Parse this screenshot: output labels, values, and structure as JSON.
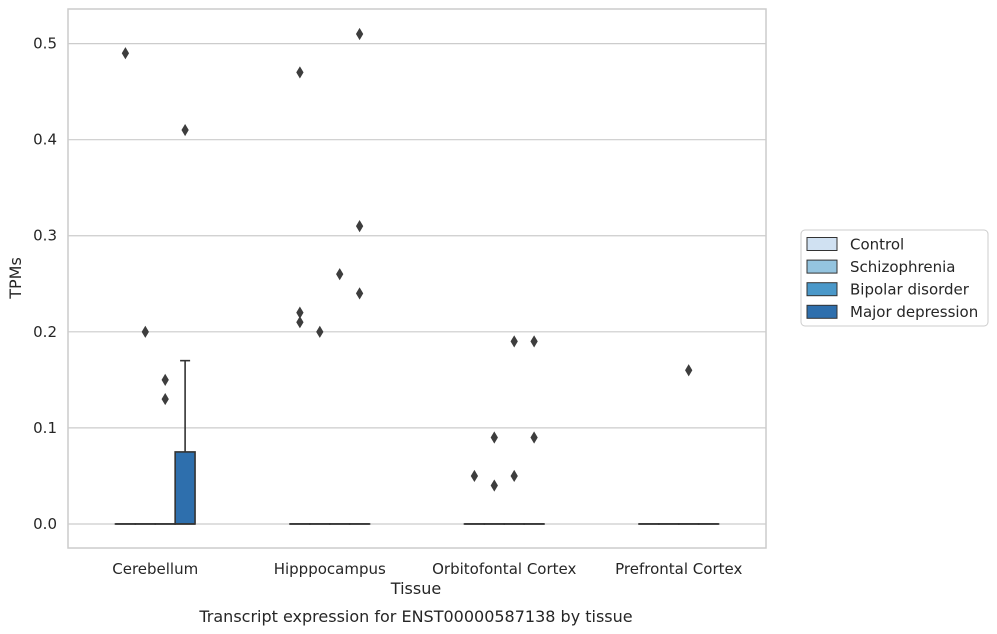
{
  "chart_data": {
    "type": "box",
    "title": "",
    "caption": "Transcript expression for ENST00000587138 by tissue",
    "xlabel": "Tissue",
    "ylabel": "TPMs",
    "ylim": [
      -0.025,
      0.536
    ],
    "yticks": [
      0.0,
      0.1,
      0.2,
      0.3,
      0.4,
      0.5
    ],
    "ytick_labels": [
      "0.0",
      "0.1",
      "0.2",
      "0.3",
      "0.4",
      "0.5"
    ],
    "grid": "horizontal",
    "legend_position": "right",
    "categories": [
      "Cerebellum",
      "Hipppocampus",
      "Orbitofontal Cortex",
      "Prefrontal Cortex"
    ],
    "series": [
      {
        "name": "Control",
        "color": "#d0e1f2",
        "boxes": [
          {
            "q1": 0,
            "median": 0,
            "q3": 0,
            "whislo": 0,
            "whishi": 0,
            "fliers": [
              0.49
            ]
          },
          {
            "q1": 0,
            "median": 0,
            "q3": 0,
            "whislo": 0,
            "whishi": 0,
            "fliers": [
              0.47,
              0.22,
              0.21
            ]
          },
          {
            "q1": 0,
            "median": 0,
            "q3": 0,
            "whislo": 0,
            "whishi": 0,
            "fliers": [
              0.05
            ]
          },
          {
            "q1": 0,
            "median": 0,
            "q3": 0,
            "whislo": 0,
            "whishi": 0,
            "fliers": []
          }
        ]
      },
      {
        "name": "Schizophrenia",
        "color": "#94c4df",
        "boxes": [
          {
            "q1": 0,
            "median": 0,
            "q3": 0,
            "whislo": 0,
            "whishi": 0,
            "fliers": [
              0.2
            ]
          },
          {
            "q1": 0,
            "median": 0,
            "q3": 0,
            "whislo": 0,
            "whishi": 0,
            "fliers": [
              0.2
            ]
          },
          {
            "q1": 0,
            "median": 0,
            "q3": 0,
            "whislo": 0,
            "whishi": 0,
            "fliers": [
              0.09,
              0.04
            ]
          },
          {
            "q1": 0,
            "median": 0,
            "q3": 0,
            "whislo": 0,
            "whishi": 0,
            "fliers": []
          }
        ]
      },
      {
        "name": "Bipolar disorder",
        "color": "#4a98c9",
        "boxes": [
          {
            "q1": 0,
            "median": 0,
            "q3": 0,
            "whislo": 0,
            "whishi": 0,
            "fliers": [
              0.15,
              0.13
            ]
          },
          {
            "q1": 0,
            "median": 0,
            "q3": 0,
            "whislo": 0,
            "whishi": 0,
            "fliers": [
              0.26
            ]
          },
          {
            "q1": 0,
            "median": 0,
            "q3": 0,
            "whislo": 0,
            "whishi": 0,
            "fliers": [
              0.19,
              0.05
            ]
          },
          {
            "q1": 0,
            "median": 0,
            "q3": 0,
            "whislo": 0,
            "whishi": 0,
            "fliers": [
              0.16
            ]
          }
        ]
      },
      {
        "name": "Major depression",
        "color": "#2e6fad",
        "boxes": [
          {
            "q1": 0,
            "median": 0,
            "q3": 0.075,
            "whislo": 0,
            "whishi": 0.17,
            "fliers": [
              0.41
            ]
          },
          {
            "q1": 0,
            "median": 0,
            "q3": 0,
            "whislo": 0,
            "whishi": 0,
            "fliers": [
              0.51,
              0.31,
              0.24
            ]
          },
          {
            "q1": 0,
            "median": 0,
            "q3": 0,
            "whislo": 0,
            "whishi": 0,
            "fliers": [
              0.19,
              0.09
            ]
          },
          {
            "q1": 0,
            "median": 0,
            "q3": 0,
            "whislo": 0,
            "whishi": 0,
            "fliers": []
          }
        ]
      }
    ]
  }
}
